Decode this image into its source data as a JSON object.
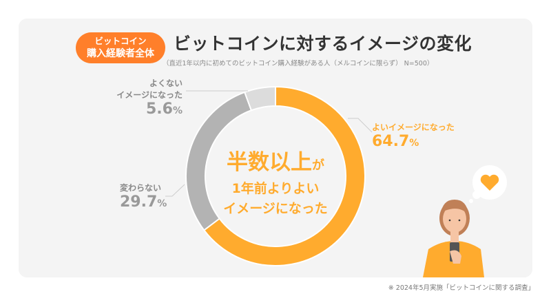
{
  "badge": {
    "line1": "ビットコイン",
    "line2": "購入経験者全体"
  },
  "title": "ビットコインに対するイメージの変化",
  "subtitle": "（直近1年以内に初めてのビットコイン購入経験がある人（メルコインに限らず） N=500）",
  "center": {
    "big": "半数以上",
    "small": "が",
    "line2": "1年前よりよい",
    "line3": "イメージになった"
  },
  "footnote": "※ 2024年5月実施「ビットコインに関する調査」",
  "chart_data": {
    "type": "pie",
    "donut": true,
    "categories": [
      "よいイメージになった",
      "変わらない",
      "よくないイメージになった"
    ],
    "values": [
      64.7,
      29.7,
      5.6
    ],
    "labels": [
      {
        "name": "よいイメージになった",
        "value": "64.7",
        "unit": "%"
      },
      {
        "name": "変わらない",
        "value": "29.7",
        "unit": "%"
      },
      {
        "name_line1": "よくない",
        "name_line2": "イメージになった",
        "value": "5.6",
        "unit": "%"
      }
    ],
    "colors": [
      "#ffab2e",
      "#b3b3b3",
      "#dcdcdc"
    ],
    "start": "top",
    "direction": "clockwise"
  },
  "illustration": {
    "icon": "woman-with-phone-heart-thought-bubble",
    "heart_color": "#ffab2e"
  }
}
